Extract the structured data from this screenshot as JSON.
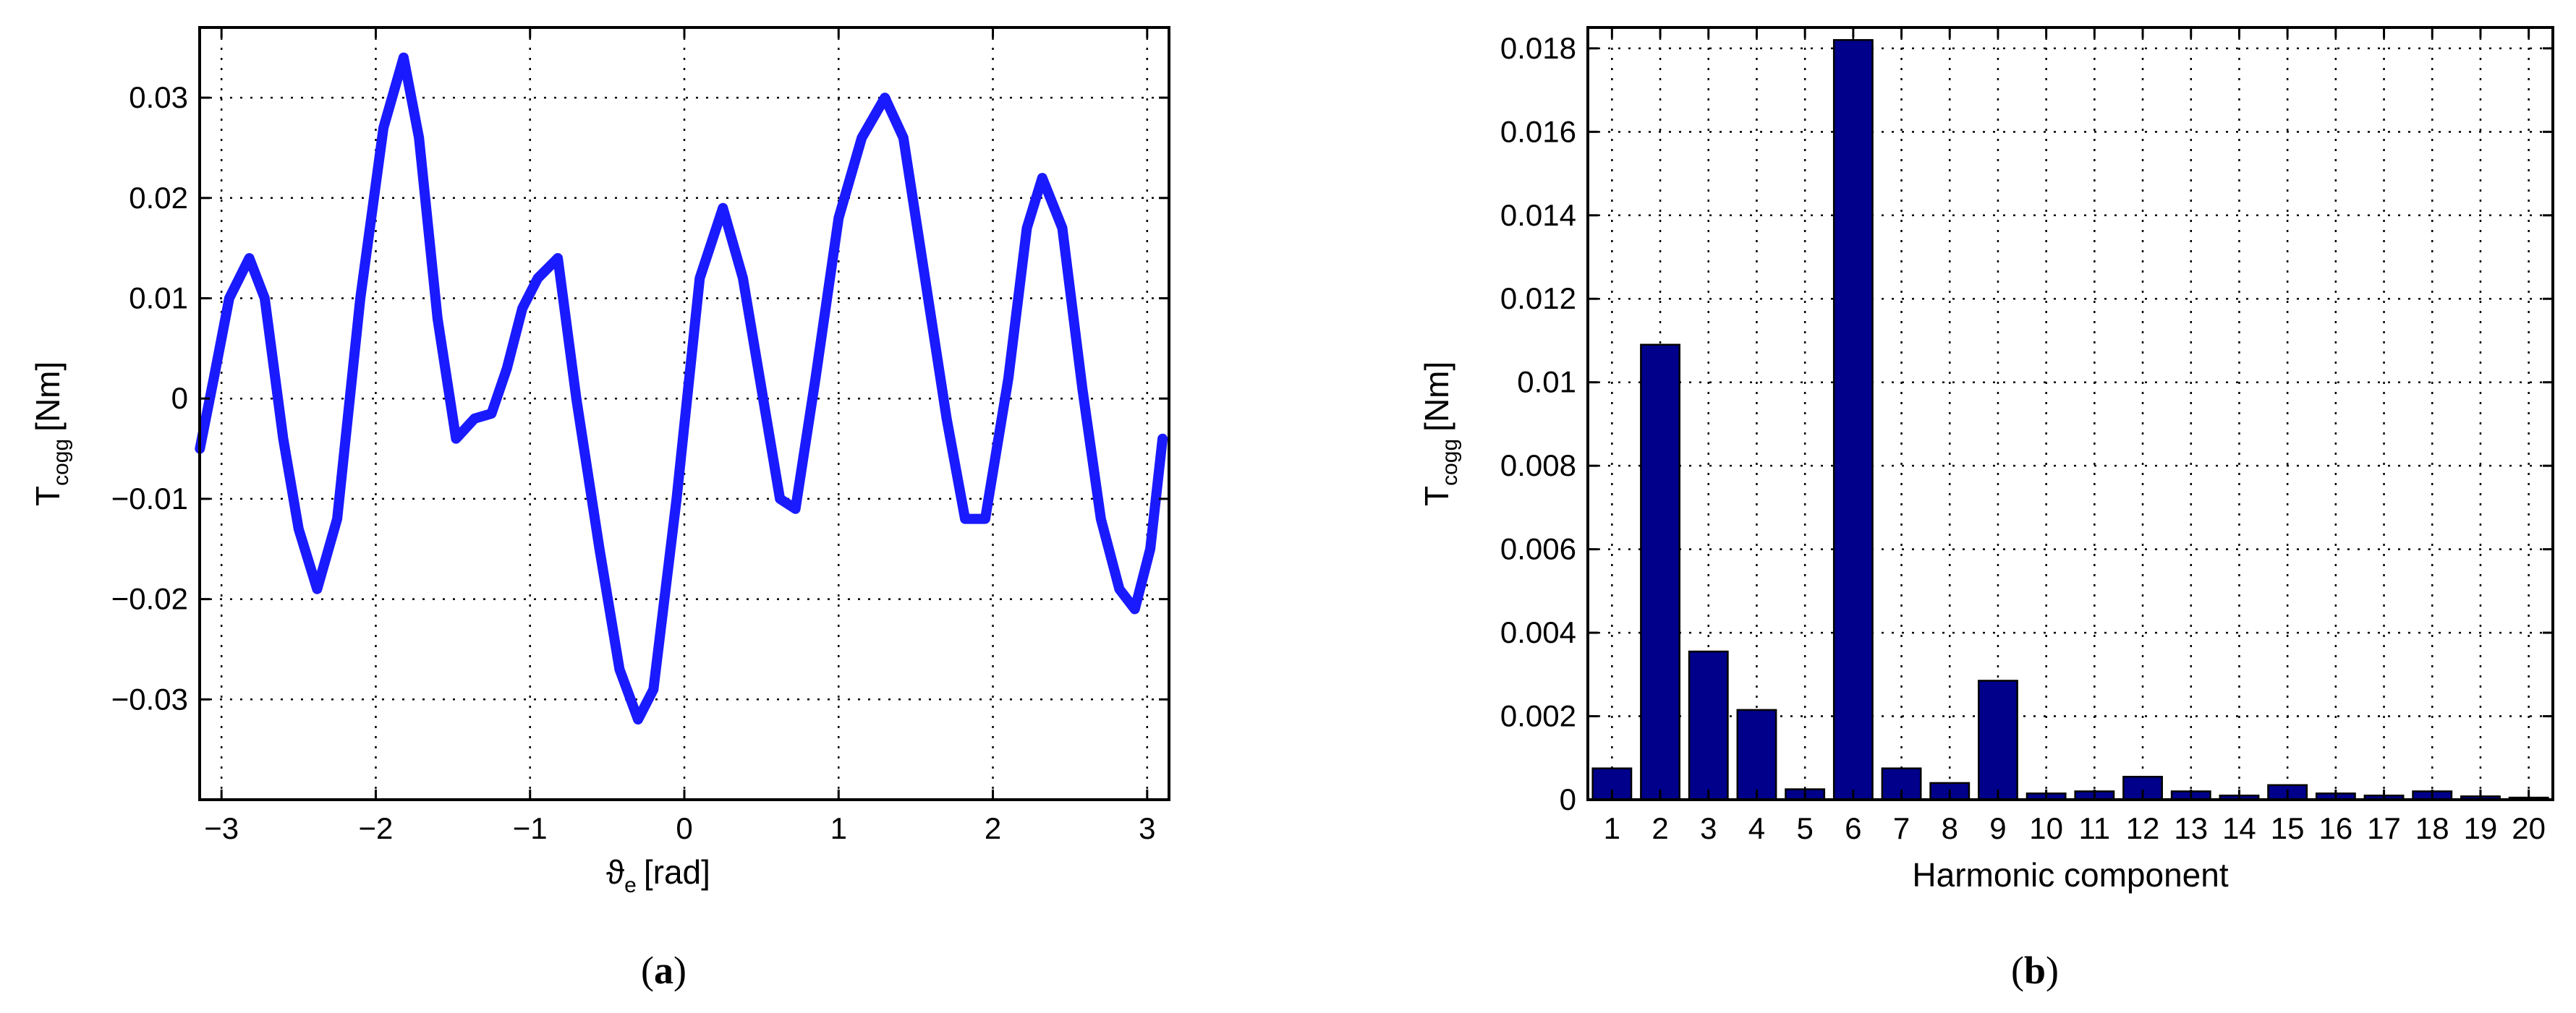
{
  "chart_data": [
    {
      "type": "line",
      "panel_label": "a",
      "xlabel_main": "ϑ",
      "xlabel_sub": "e",
      "xlabel_unit": "[rad]",
      "ylabel_main": "T",
      "ylabel_sub": "cogg",
      "ylabel_unit": "[Nm]",
      "xlim": [
        -3.14159,
        3.14159
      ],
      "ylim": [
        -0.04,
        0.037
      ],
      "xticks": [
        -3,
        -2,
        -1,
        0,
        1,
        2,
        3
      ],
      "xtick_labels": [
        "−3",
        "−2",
        "−1",
        "0",
        "1",
        "2",
        "3"
      ],
      "yticks": [
        -0.03,
        -0.02,
        -0.01,
        0,
        0.01,
        0.02,
        0.03
      ],
      "ytick_labels": [
        "−0.03",
        "−0.02",
        "−0.01",
        "0",
        "0.01",
        "0.02",
        "0.03"
      ],
      "grid": true,
      "series_color": "#1a1aff",
      "x": [
        -3.14,
        -3.05,
        -2.95,
        -2.82,
        -2.72,
        -2.6,
        -2.5,
        -2.38,
        -2.25,
        -2.1,
        -1.95,
        -1.82,
        -1.72,
        -1.6,
        -1.48,
        -1.36,
        -1.25,
        -1.15,
        -1.05,
        -0.95,
        -0.82,
        -0.7,
        -0.55,
        -0.42,
        -0.3,
        -0.2,
        -0.05,
        0.1,
        0.25,
        0.38,
        0.5,
        0.62,
        0.72,
        0.85,
        1.0,
        1.15,
        1.3,
        1.42,
        1.55,
        1.7,
        1.82,
        1.95,
        2.1,
        2.22,
        2.32,
        2.45,
        2.58,
        2.7,
        2.82,
        2.92,
        3.02,
        3.1
      ],
      "y": [
        -0.005,
        0.002,
        0.01,
        0.014,
        0.01,
        -0.004,
        -0.013,
        -0.019,
        -0.012,
        0.01,
        0.027,
        0.034,
        0.026,
        0.008,
        -0.004,
        -0.002,
        -0.0015,
        0.003,
        0.009,
        0.012,
        0.014,
        0.0,
        -0.015,
        -0.027,
        -0.032,
        -0.029,
        -0.01,
        0.012,
        0.019,
        0.012,
        0.001,
        -0.01,
        -0.011,
        0.002,
        0.018,
        0.026,
        0.03,
        0.026,
        0.013,
        -0.002,
        -0.012,
        -0.012,
        0.002,
        0.017,
        0.022,
        0.017,
        0.001,
        -0.012,
        -0.019,
        -0.021,
        -0.015,
        -0.004
      ]
    },
    {
      "type": "bar",
      "panel_label": "b",
      "xlabel": "Harmonic component",
      "ylabel_main": "T",
      "ylabel_sub": "cogg",
      "ylabel_unit": "[Nm]",
      "ylim": [
        0,
        0.0185
      ],
      "yticks": [
        0,
        0.002,
        0.004,
        0.006,
        0.008,
        0.01,
        0.012,
        0.014,
        0.016,
        0.018
      ],
      "ytick_labels": [
        "0",
        "0.002",
        "0.004",
        "0.006",
        "0.008",
        "0.01",
        "0.012",
        "0.014",
        "0.016",
        "0.018"
      ],
      "grid": true,
      "bar_color": "#00008b",
      "categories": [
        "1",
        "2",
        "3",
        "4",
        "5",
        "6",
        "7",
        "8",
        "9",
        "10",
        "11",
        "12",
        "13",
        "14",
        "15",
        "16",
        "17",
        "18",
        "19",
        "20"
      ],
      "values": [
        0.00075,
        0.0109,
        0.00355,
        0.00215,
        0.00025,
        0.0182,
        0.00075,
        0.0004,
        0.00285,
        0.00015,
        0.0002,
        0.00055,
        0.0002,
        0.0001,
        0.00035,
        0.00015,
        0.0001,
        0.0002,
        8e-05,
        5e-05
      ]
    }
  ]
}
